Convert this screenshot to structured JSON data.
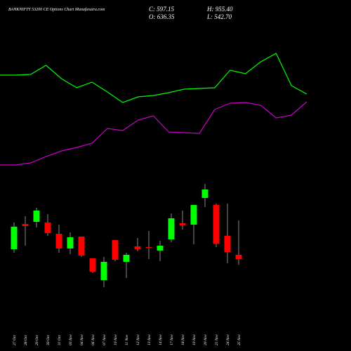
{
  "chart_data": {
    "type": "candlestick",
    "title": "BANKNIFTY 53200  CE Options Chart Munafasutra.com",
    "ohlc_labels": {
      "close": "C: 597.15",
      "high": "H: 955.40",
      "open": "O: 636.35",
      "low": "L: 542.70"
    },
    "categories": [
      "27 Oct",
      "28 Oct",
      "29 Oct",
      "30 Oct",
      "31 Oct",
      "03 Nov",
      "04 Nov",
      "06 Nov",
      "07 Nov",
      "10 Nov",
      "11 Nov",
      "12 Nov",
      "13 Nov",
      "14 Nov",
      "17 Nov",
      "18 Nov",
      "19 Nov",
      "20 Nov",
      "21 Nov",
      "24 Nov",
      "25 Nov"
    ],
    "open": [
      688,
      923,
      943,
      937,
      832,
      695,
      806,
      604,
      401,
      773,
      571,
      715,
      708,
      676,
      780,
      930,
      917,
      1165,
      1100,
      813,
      636.35
    ],
    "high": [
      937,
      996,
      1074,
      1015,
      917,
      845,
      806,
      604,
      617,
      773,
      656,
      793,
      858,
      767,
      1022,
      1048,
      1100,
      1296,
      1113,
      1113,
      955.4
    ],
    "low": [
      656,
      721,
      891,
      813,
      656,
      643,
      617,
      467,
      336,
      578,
      421,
      669,
      597,
      578,
      754,
      871,
      734,
      1080,
      708,
      558,
      542.7
    ],
    "close": [
      898,
      904,
      1048,
      839,
      695,
      800,
      630,
      480,
      571,
      591,
      636,
      689,
      702,
      721,
      976,
      911,
      1100,
      1244,
      741,
      662,
      597.15
    ],
    "up_color": "#00ff00",
    "down_color": "#ff0000",
    "ylim": [
      300,
      1400
    ],
    "lines": [
      {
        "color": "#00ff00",
        "values": [
          143,
          143,
          144,
          157,
          138,
          125,
          133,
          119,
          104,
          112,
          114,
          118,
          123,
          124,
          125,
          150,
          145,
          162,
          174,
          128,
          116
        ]
      },
      {
        "color": "#cc00cc",
        "values": [
          15,
          15,
          18,
          27,
          35,
          40,
          46,
          67,
          64,
          79,
          85,
          62,
          61,
          60,
          94,
          103,
          104,
          100,
          82,
          86,
          105
        ]
      }
    ],
    "lines_ylim": [
      0,
      250
    ]
  }
}
